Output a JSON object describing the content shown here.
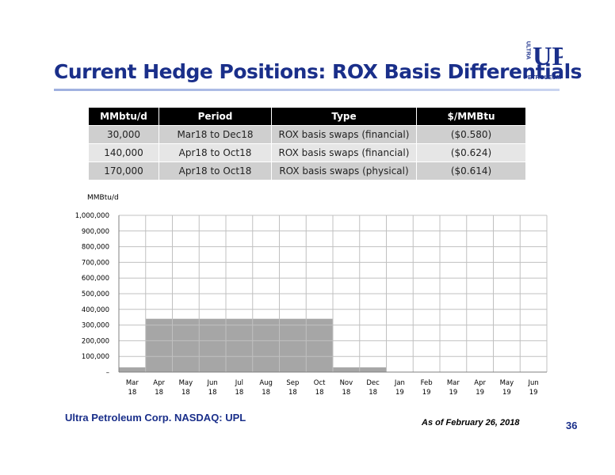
{
  "slide": {
    "title": "Current Hedge Positions:  ROX Basis Differentials",
    "footer_company": "Ultra Petroleum Corp. NASDAQ: UPL",
    "as_of": "As of February 26, 2018",
    "page_number": "36"
  },
  "logo": {
    "vertical_text": "ULTRA",
    "letters": "UP",
    "sub_text": "PETROLEUM",
    "color": "#1a2f8a"
  },
  "table": {
    "headers": [
      "MMbtu/d",
      "Period",
      "Type",
      "$/MMBtu"
    ],
    "rows": [
      [
        "30,000",
        "Mar18 to Dec18",
        "ROX basis swaps (financial)",
        "($0.580)"
      ],
      [
        "140,000",
        "Apr18 to Oct18",
        "ROX basis swaps (financial)",
        "($0.624)"
      ],
      [
        "170,000",
        "Apr18 to Oct18",
        "ROX basis swaps (physical)",
        "($0.614)"
      ]
    ]
  },
  "chart_data": {
    "type": "area",
    "ylabel": "MMBtu/d",
    "ylim": [
      0,
      1000000
    ],
    "yticks": [
      "1,000,000",
      "900,000",
      "800,000",
      "700,000",
      "600,000",
      "500,000",
      "400,000",
      "300,000",
      "200,000",
      "100,000",
      "–"
    ],
    "ytick_values": [
      1000000,
      900000,
      800000,
      700000,
      600000,
      500000,
      400000,
      300000,
      200000,
      100000,
      0
    ],
    "categories": [
      [
        "Mar",
        "18"
      ],
      [
        "Apr",
        "18"
      ],
      [
        "May",
        "18"
      ],
      [
        "Jun",
        "18"
      ],
      [
        "Jul",
        "18"
      ],
      [
        "Aug",
        "18"
      ],
      [
        "Sep",
        "18"
      ],
      [
        "Oct",
        "18"
      ],
      [
        "Nov",
        "18"
      ],
      [
        "Dec",
        "18"
      ],
      [
        "Jan",
        "19"
      ],
      [
        "Feb",
        "19"
      ],
      [
        "Mar",
        "19"
      ],
      [
        "Apr",
        "19"
      ],
      [
        "May",
        "19"
      ],
      [
        "Jun",
        "19"
      ]
    ],
    "values": [
      30000,
      340000,
      340000,
      340000,
      340000,
      340000,
      340000,
      340000,
      30000,
      30000,
      0,
      0,
      0,
      0,
      0,
      0
    ],
    "grid": true,
    "fill_color": "#a6a6a6"
  }
}
